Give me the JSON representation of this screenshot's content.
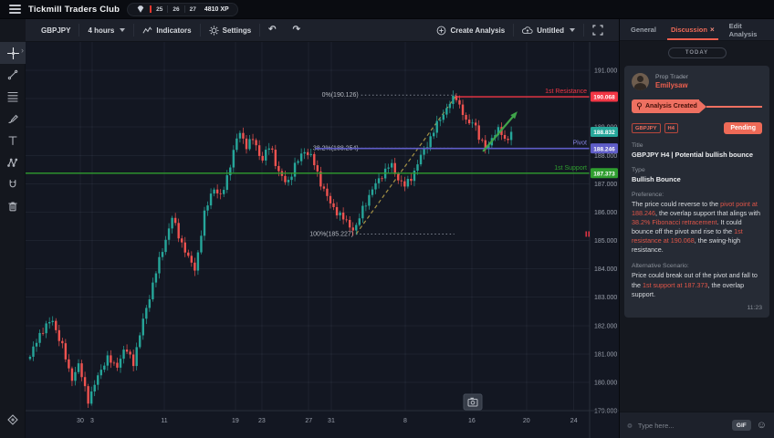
{
  "topbar": {
    "title": "Tickmill Traders Club",
    "levels": [
      "25",
      "26",
      "27"
    ],
    "xp": "4810 XP"
  },
  "toolbar": {
    "symbol": "GBPJPY",
    "timeframe": "4 hours",
    "indicators": "Indicators",
    "settings": "Settings",
    "undo": "↶",
    "redo": "↷",
    "create_analysis": "Create Analysis",
    "save_name": "Untitled"
  },
  "sidebar": {
    "tools": [
      "crosshair",
      "trend-line",
      "fib-retracement",
      "brush",
      "text",
      "xabcd-pattern",
      "magnet",
      "trash"
    ]
  },
  "panel": {
    "tabs": [
      {
        "label": "General"
      },
      {
        "label": "Discussion"
      },
      {
        "label": "Edit Analysis"
      }
    ],
    "close_glyph": "×",
    "day_divider": "TODAY",
    "post": {
      "author_role": "Prop Trader",
      "author_name": "Emilysaw",
      "ribbon": "Analysis Created",
      "tags": [
        "GBPJPY",
        "H4"
      ],
      "status": "Pending",
      "title_label": "Title",
      "title": "GBPJPY H4 | Potential bullish bounce",
      "type_label": "Type",
      "type": "Bullish Bounce",
      "preference_label": "Preference:",
      "preference_segments": [
        {
          "t": "The price could reverse to the ",
          "c": "w"
        },
        {
          "t": "pivot point at 188.246",
          "c": "r"
        },
        {
          "t": ", the overlap support that alings with ",
          "c": "w"
        },
        {
          "t": "38.2% Fibonacci retracement",
          "c": "r"
        },
        {
          "t": ". It could bounce off the pivot and rise to the ",
          "c": "w"
        },
        {
          "t": "1st resistance at 190.068",
          "c": "r"
        },
        {
          "t": ", the swing-high resistance.",
          "c": "w"
        }
      ],
      "alt_label": "Alternative Scenario:",
      "alt_segments": [
        {
          "t": "Price could break out of the pivot and fall to the ",
          "c": "w"
        },
        {
          "t": "1st support at 187.373",
          "c": "r"
        },
        {
          "t": ", the overlap support.",
          "c": "w"
        }
      ],
      "time": "11:23"
    },
    "input": {
      "placeholder": "Type here...",
      "gif": "GIF"
    }
  },
  "chart_data": {
    "type": "candlestick",
    "symbol": "GBPJPY",
    "timeframe": "4 hours",
    "price_axis": {
      "ticks": [
        191,
        190,
        189,
        188,
        187,
        186,
        185,
        184,
        183,
        182,
        181,
        180,
        179
      ],
      "top": 192.0,
      "bottom": 179.0
    },
    "time_axis": [
      {
        "t": "30",
        "f": 0.097
      },
      {
        "t": "3",
        "f": 0.118
      },
      {
        "t": "11",
        "f": 0.246
      },
      {
        "t": "19",
        "f": 0.372
      },
      {
        "t": "23",
        "f": 0.419
      },
      {
        "t": "27",
        "f": 0.502
      },
      {
        "t": "31",
        "f": 0.542
      },
      {
        "t": "8",
        "f": 0.673
      },
      {
        "t": "16",
        "f": 0.791
      },
      {
        "t": "20",
        "f": 0.888
      },
      {
        "t": "24",
        "f": 0.972
      }
    ],
    "colors": {
      "up": "#26a69a",
      "down": "#ef5350",
      "grid": "rgba(151,161,187,0.08)"
    },
    "levels": [
      {
        "label": "1st Resistance",
        "price": 190.068,
        "color": "#f23645",
        "from_f": 0.764,
        "width": 1.3
      },
      {
        "label": "Pivot",
        "price": 188.246,
        "color": "#5f5dc8",
        "from_f": 0.513,
        "width": 1.6
      },
      {
        "label": "1st Support",
        "price": 187.373,
        "color": "#2f9e2f",
        "from_f": 0.0,
        "width": 1.4
      }
    ],
    "current_price": {
      "price": 188.832,
      "color": "#26a69a"
    },
    "fib_levels": [
      {
        "label": "0%",
        "price": 190.126,
        "from_f": 0.595,
        "to_f": 0.764
      },
      {
        "label": "38.2%",
        "price": 188.254,
        "from_f": 0.595,
        "to_f": 0.76
      },
      {
        "label": "100%",
        "price": 185.227,
        "from_f": 0.586,
        "to_f": 0.76
      }
    ],
    "trendline": {
      "from_f": 0.586,
      "from_price": 185.227,
      "to_f": 0.764,
      "to_price": 190.126,
      "color": "#a59245"
    },
    "arrow": {
      "from_f": 0.811,
      "from_price": 188.14,
      "to_f": 0.872,
      "to_price": 189.55,
      "color": "#3fa44a"
    },
    "n_candles": 150,
    "candle_span_f": [
      0.008,
      0.861
    ],
    "price_path": [
      [
        0.008,
        180.9
      ],
      [
        0.0275,
        181.8
      ],
      [
        0.047,
        182.2
      ],
      [
        0.0647,
        181.3
      ],
      [
        0.081,
        180.1
      ],
      [
        0.0938,
        180.6
      ],
      [
        0.1117,
        179.35
      ],
      [
        0.1262,
        180.1
      ],
      [
        0.144,
        180.9
      ],
      [
        0.16,
        180.5
      ],
      [
        0.176,
        181.2
      ],
      [
        0.191,
        180.7
      ],
      [
        0.21,
        182.3
      ],
      [
        0.23,
        183.8
      ],
      [
        0.246,
        184.9
      ],
      [
        0.26,
        185.8
      ],
      [
        0.275,
        185.0
      ],
      [
        0.29,
        184.3
      ],
      [
        0.301,
        184.0
      ],
      [
        0.317,
        185.9
      ],
      [
        0.332,
        186.9
      ],
      [
        0.346,
        186.5
      ],
      [
        0.362,
        187.6
      ],
      [
        0.379,
        188.9
      ],
      [
        0.392,
        188.3
      ],
      [
        0.404,
        188.6
      ],
      [
        0.419,
        187.8
      ],
      [
        0.434,
        188.4
      ],
      [
        0.448,
        187.4
      ],
      [
        0.463,
        187.0
      ],
      [
        0.477,
        187.6
      ],
      [
        0.494,
        188.2
      ],
      [
        0.508,
        187.9
      ],
      [
        0.524,
        187.0
      ],
      [
        0.54,
        186.3
      ],
      [
        0.557,
        185.9
      ],
      [
        0.571,
        185.6
      ],
      [
        0.584,
        185.35
      ],
      [
        0.599,
        186.2
      ],
      [
        0.615,
        186.8
      ],
      [
        0.631,
        187.3
      ],
      [
        0.647,
        187.7
      ],
      [
        0.66,
        187.2
      ],
      [
        0.673,
        186.9
      ],
      [
        0.686,
        187.3
      ],
      [
        0.699,
        187.9
      ],
      [
        0.712,
        188.4
      ],
      [
        0.727,
        189.0
      ],
      [
        0.741,
        189.5
      ],
      [
        0.754,
        189.9
      ],
      [
        0.764,
        190.05
      ],
      [
        0.775,
        189.5
      ],
      [
        0.785,
        189.0
      ],
      [
        0.794,
        189.3
      ],
      [
        0.806,
        188.5
      ],
      [
        0.817,
        188.2
      ],
      [
        0.828,
        188.7
      ],
      [
        0.841,
        188.9
      ],
      [
        0.851,
        188.5
      ],
      [
        0.861,
        188.832
      ]
    ]
  }
}
